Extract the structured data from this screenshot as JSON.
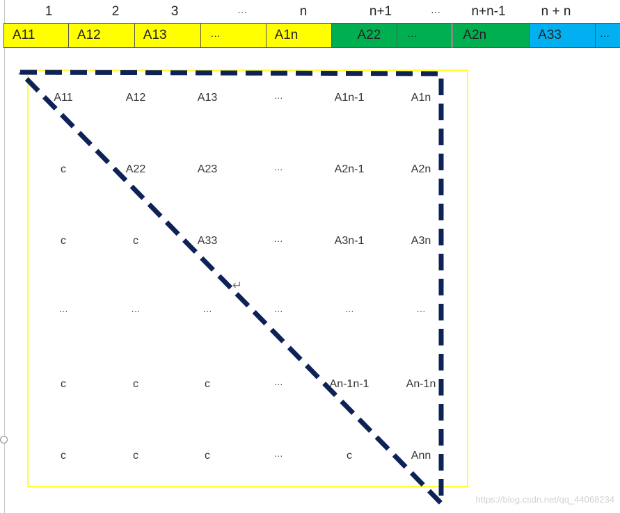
{
  "index_labels": [
    "1",
    "2",
    "3",
    "···",
    "n",
    "n+1",
    "···",
    "n+n-1",
    "n + n"
  ],
  "array": {
    "colors": {
      "yellow": "#ffff00",
      "green": "#00b050",
      "blue": "#00b0f0"
    },
    "cells": [
      {
        "label": "A11",
        "color": "yellow"
      },
      {
        "label": "A12",
        "color": "yellow"
      },
      {
        "label": "A13",
        "color": "yellow"
      },
      {
        "label": "···",
        "color": "yellow"
      },
      {
        "label": "A1n",
        "color": "yellow"
      },
      {
        "label": "A22",
        "color": "green"
      },
      {
        "label": "···",
        "color": "green"
      },
      {
        "label": "A2n",
        "color": "green"
      },
      {
        "label": "A33",
        "color": "blue"
      },
      {
        "label": "···",
        "color": "blue"
      }
    ]
  },
  "matrix": {
    "border_color": "#ffff33",
    "triangle_color": "#0d2257",
    "rows": [
      [
        "A11",
        "A12",
        "A13",
        "···",
        "A1n-1",
        "A1n"
      ],
      [
        "c",
        "A22",
        "A23",
        "···",
        "A2n-1",
        "A2n"
      ],
      [
        "c",
        "c",
        "A33",
        "···",
        "A3n-1",
        "A3n"
      ],
      [
        "···",
        "···",
        "···",
        "···",
        "···",
        "···"
      ],
      [
        "c",
        "c",
        "c",
        "···",
        "An-1n-1",
        "An-1n"
      ],
      [
        "c",
        "c",
        "c",
        "···",
        "c",
        "Ann"
      ]
    ]
  },
  "return_mark": "↵",
  "watermark": "https://blog.csdn.net/qq_44068234"
}
